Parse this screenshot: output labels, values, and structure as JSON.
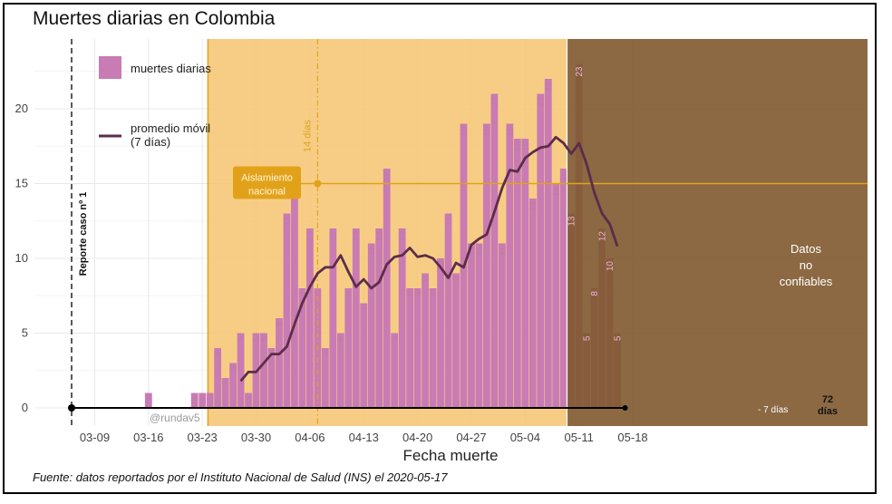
{
  "chart_data": {
    "type": "bar",
    "title": "Muertes diarias en Colombia",
    "xlabel": "Fecha muerte",
    "ylabel": "",
    "source": "Fuente: datos reportados por el Instituto Nacional de Salud (INS) el 2020-05-17",
    "credit": "@rundav5",
    "x_start_date": "2020-03-06",
    "x_ticks": [
      "03-09",
      "03-16",
      "03-23",
      "03-30",
      "04-06",
      "04-13",
      "04-20",
      "04-27",
      "05-04",
      "05-11",
      "05-18"
    ],
    "y_ticks": [
      0,
      5,
      10,
      15,
      20
    ],
    "ylim": [
      0,
      23.5
    ],
    "legend": {
      "position": "top-left",
      "bars": "muertes diarias",
      "line": "promedio móvil\n(7 días)"
    },
    "bars": [
      {
        "date": "2020-03-16",
        "value": 1
      },
      {
        "date": "2020-03-22",
        "value": 1
      },
      {
        "date": "2020-03-23",
        "value": 1
      },
      {
        "date": "2020-03-24",
        "value": 1
      },
      {
        "date": "2020-03-25",
        "value": 4
      },
      {
        "date": "2020-03-26",
        "value": 2
      },
      {
        "date": "2020-03-27",
        "value": 3
      },
      {
        "date": "2020-03-28",
        "value": 5
      },
      {
        "date": "2020-03-29",
        "value": 1
      },
      {
        "date": "2020-03-30",
        "value": 5
      },
      {
        "date": "2020-03-31",
        "value": 5
      },
      {
        "date": "2020-04-01",
        "value": 4
      },
      {
        "date": "2020-04-02",
        "value": 6
      },
      {
        "date": "2020-04-03",
        "value": 13
      },
      {
        "date": "2020-04-04",
        "value": 15
      },
      {
        "date": "2020-04-05",
        "value": 8
      },
      {
        "date": "2020-04-06",
        "value": 12
      },
      {
        "date": "2020-04-07",
        "value": 8
      },
      {
        "date": "2020-04-08",
        "value": 4
      },
      {
        "date": "2020-04-09",
        "value": 12
      },
      {
        "date": "2020-04-10",
        "value": 5
      },
      {
        "date": "2020-04-11",
        "value": 8
      },
      {
        "date": "2020-04-12",
        "value": 12
      },
      {
        "date": "2020-04-13",
        "value": 7
      },
      {
        "date": "2020-04-14",
        "value": 11
      },
      {
        "date": "2020-04-15",
        "value": 12
      },
      {
        "date": "2020-04-16",
        "value": 16
      },
      {
        "date": "2020-04-17",
        "value": 5
      },
      {
        "date": "2020-04-18",
        "value": 12
      },
      {
        "date": "2020-04-19",
        "value": 8
      },
      {
        "date": "2020-04-20",
        "value": 8
      },
      {
        "date": "2020-04-21",
        "value": 9
      },
      {
        "date": "2020-04-22",
        "value": 8
      },
      {
        "date": "2020-04-23",
        "value": 10
      },
      {
        "date": "2020-04-24",
        "value": 13
      },
      {
        "date": "2020-04-25",
        "value": 9
      },
      {
        "date": "2020-04-26",
        "value": 19
      },
      {
        "date": "2020-04-27",
        "value": 11
      },
      {
        "date": "2020-04-28",
        "value": 11
      },
      {
        "date": "2020-04-29",
        "value": 19
      },
      {
        "date": "2020-04-30",
        "value": 21
      },
      {
        "date": "2020-05-01",
        "value": 11
      },
      {
        "date": "2020-05-02",
        "value": 19
      },
      {
        "date": "2020-05-03",
        "value": 18
      },
      {
        "date": "2020-05-04",
        "value": 18
      },
      {
        "date": "2020-05-05",
        "value": 14
      },
      {
        "date": "2020-05-06",
        "value": 21
      },
      {
        "date": "2020-05-07",
        "value": 22
      },
      {
        "date": "2020-05-08",
        "value": 15
      },
      {
        "date": "2020-05-09",
        "value": 16
      },
      {
        "date": "2020-05-10",
        "value": 13
      },
      {
        "date": "2020-05-11",
        "value": 23
      },
      {
        "date": "2020-05-12",
        "value": 5
      },
      {
        "date": "2020-05-13",
        "value": 8
      },
      {
        "date": "2020-05-14",
        "value": 12
      },
      {
        "date": "2020-05-15",
        "value": 10
      },
      {
        "date": "2020-05-16",
        "value": 5
      }
    ],
    "moving_average": [
      {
        "date": "2020-03-28",
        "value": 1.8
      },
      {
        "date": "2020-03-29",
        "value": 2.4
      },
      {
        "date": "2020-03-30",
        "value": 2.4
      },
      {
        "date": "2020-03-31",
        "value": 3.0
      },
      {
        "date": "2020-04-01",
        "value": 3.6
      },
      {
        "date": "2020-04-02",
        "value": 3.6
      },
      {
        "date": "2020-04-03",
        "value": 4.1
      },
      {
        "date": "2020-04-04",
        "value": 5.6
      },
      {
        "date": "2020-04-05",
        "value": 7.0
      },
      {
        "date": "2020-04-06",
        "value": 8.1
      },
      {
        "date": "2020-04-07",
        "value": 9.0
      },
      {
        "date": "2020-04-08",
        "value": 9.4
      },
      {
        "date": "2020-04-09",
        "value": 9.4
      },
      {
        "date": "2020-04-10",
        "value": 10.2
      },
      {
        "date": "2020-04-11",
        "value": 9.1
      },
      {
        "date": "2020-04-12",
        "value": 8.1
      },
      {
        "date": "2020-04-13",
        "value": 8.6
      },
      {
        "date": "2020-04-14",
        "value": 8.0
      },
      {
        "date": "2020-04-15",
        "value": 8.4
      },
      {
        "date": "2020-04-16",
        "value": 9.6
      },
      {
        "date": "2020-04-17",
        "value": 10.1
      },
      {
        "date": "2020-04-18",
        "value": 10.2
      },
      {
        "date": "2020-04-19",
        "value": 10.7
      },
      {
        "date": "2020-04-20",
        "value": 10.1
      },
      {
        "date": "2020-04-21",
        "value": 10.2
      },
      {
        "date": "2020-04-22",
        "value": 10.0
      },
      {
        "date": "2020-04-23",
        "value": 9.4
      },
      {
        "date": "2020-04-24",
        "value": 8.7
      },
      {
        "date": "2020-04-25",
        "value": 9.7
      },
      {
        "date": "2020-04-26",
        "value": 9.4
      },
      {
        "date": "2020-04-27",
        "value": 10.9
      },
      {
        "date": "2020-04-28",
        "value": 11.3
      },
      {
        "date": "2020-04-29",
        "value": 11.6
      },
      {
        "date": "2020-04-30",
        "value": 13.1
      },
      {
        "date": "2020-05-01",
        "value": 14.7
      },
      {
        "date": "2020-05-02",
        "value": 15.9
      },
      {
        "date": "2020-05-03",
        "value": 15.8
      },
      {
        "date": "2020-05-04",
        "value": 16.7
      },
      {
        "date": "2020-05-05",
        "value": 17.1
      },
      {
        "date": "2020-05-06",
        "value": 17.4
      },
      {
        "date": "2020-05-07",
        "value": 17.5
      },
      {
        "date": "2020-05-08",
        "value": 18.1
      },
      {
        "date": "2020-05-09",
        "value": 17.7
      },
      {
        "date": "2020-05-10",
        "value": 17.0
      },
      {
        "date": "2020-05-11",
        "value": 17.7
      },
      {
        "date": "2020-05-12",
        "value": 16.3
      },
      {
        "date": "2020-05-13",
        "value": 14.4
      },
      {
        "date": "2020-05-14",
        "value": 13.0
      },
      {
        "date": "2020-05-15",
        "value": 12.3
      },
      {
        "date": "2020-05-16",
        "value": 10.8
      }
    ],
    "regions": [
      {
        "name": "aislamiento",
        "from": "2020-03-24",
        "to": "2020-05-09",
        "color": "#f6c470"
      },
      {
        "name": "no-confiables",
        "from": "2020-05-09",
        "to": "2020-05-20",
        "color": "#80592f"
      }
    ],
    "reference_lines": [
      {
        "name": "reporte-caso-1",
        "date": "2020-03-06",
        "label": "Reporte caso nº 1",
        "style": "dashed",
        "color": "#000000"
      },
      {
        "name": "14-dias",
        "date": "2020-04-07",
        "label": "14 días",
        "style": "dashdot",
        "color": "#e1a21a"
      },
      {
        "name": "aislamiento-h",
        "y": 15,
        "label": "Aislamiento\nnacional",
        "color": "#e1a21a"
      }
    ],
    "baseline": {
      "from": "2020-03-06",
      "to": "2020-05-17",
      "y": 0,
      "end_label": "72\ndías",
      "inner_label": "- 7 días"
    },
    "annotations": {
      "unreliable": "Datos\nno\nconfiables"
    },
    "colors": {
      "bar": "#c97bb3",
      "bar_label": "#c27aad",
      "line": "#5c2d4a",
      "region_shade": "#f6c470",
      "dark_region": "#80592f",
      "grid": "#e8e8e8",
      "accent": "#e1a21a"
    }
  }
}
